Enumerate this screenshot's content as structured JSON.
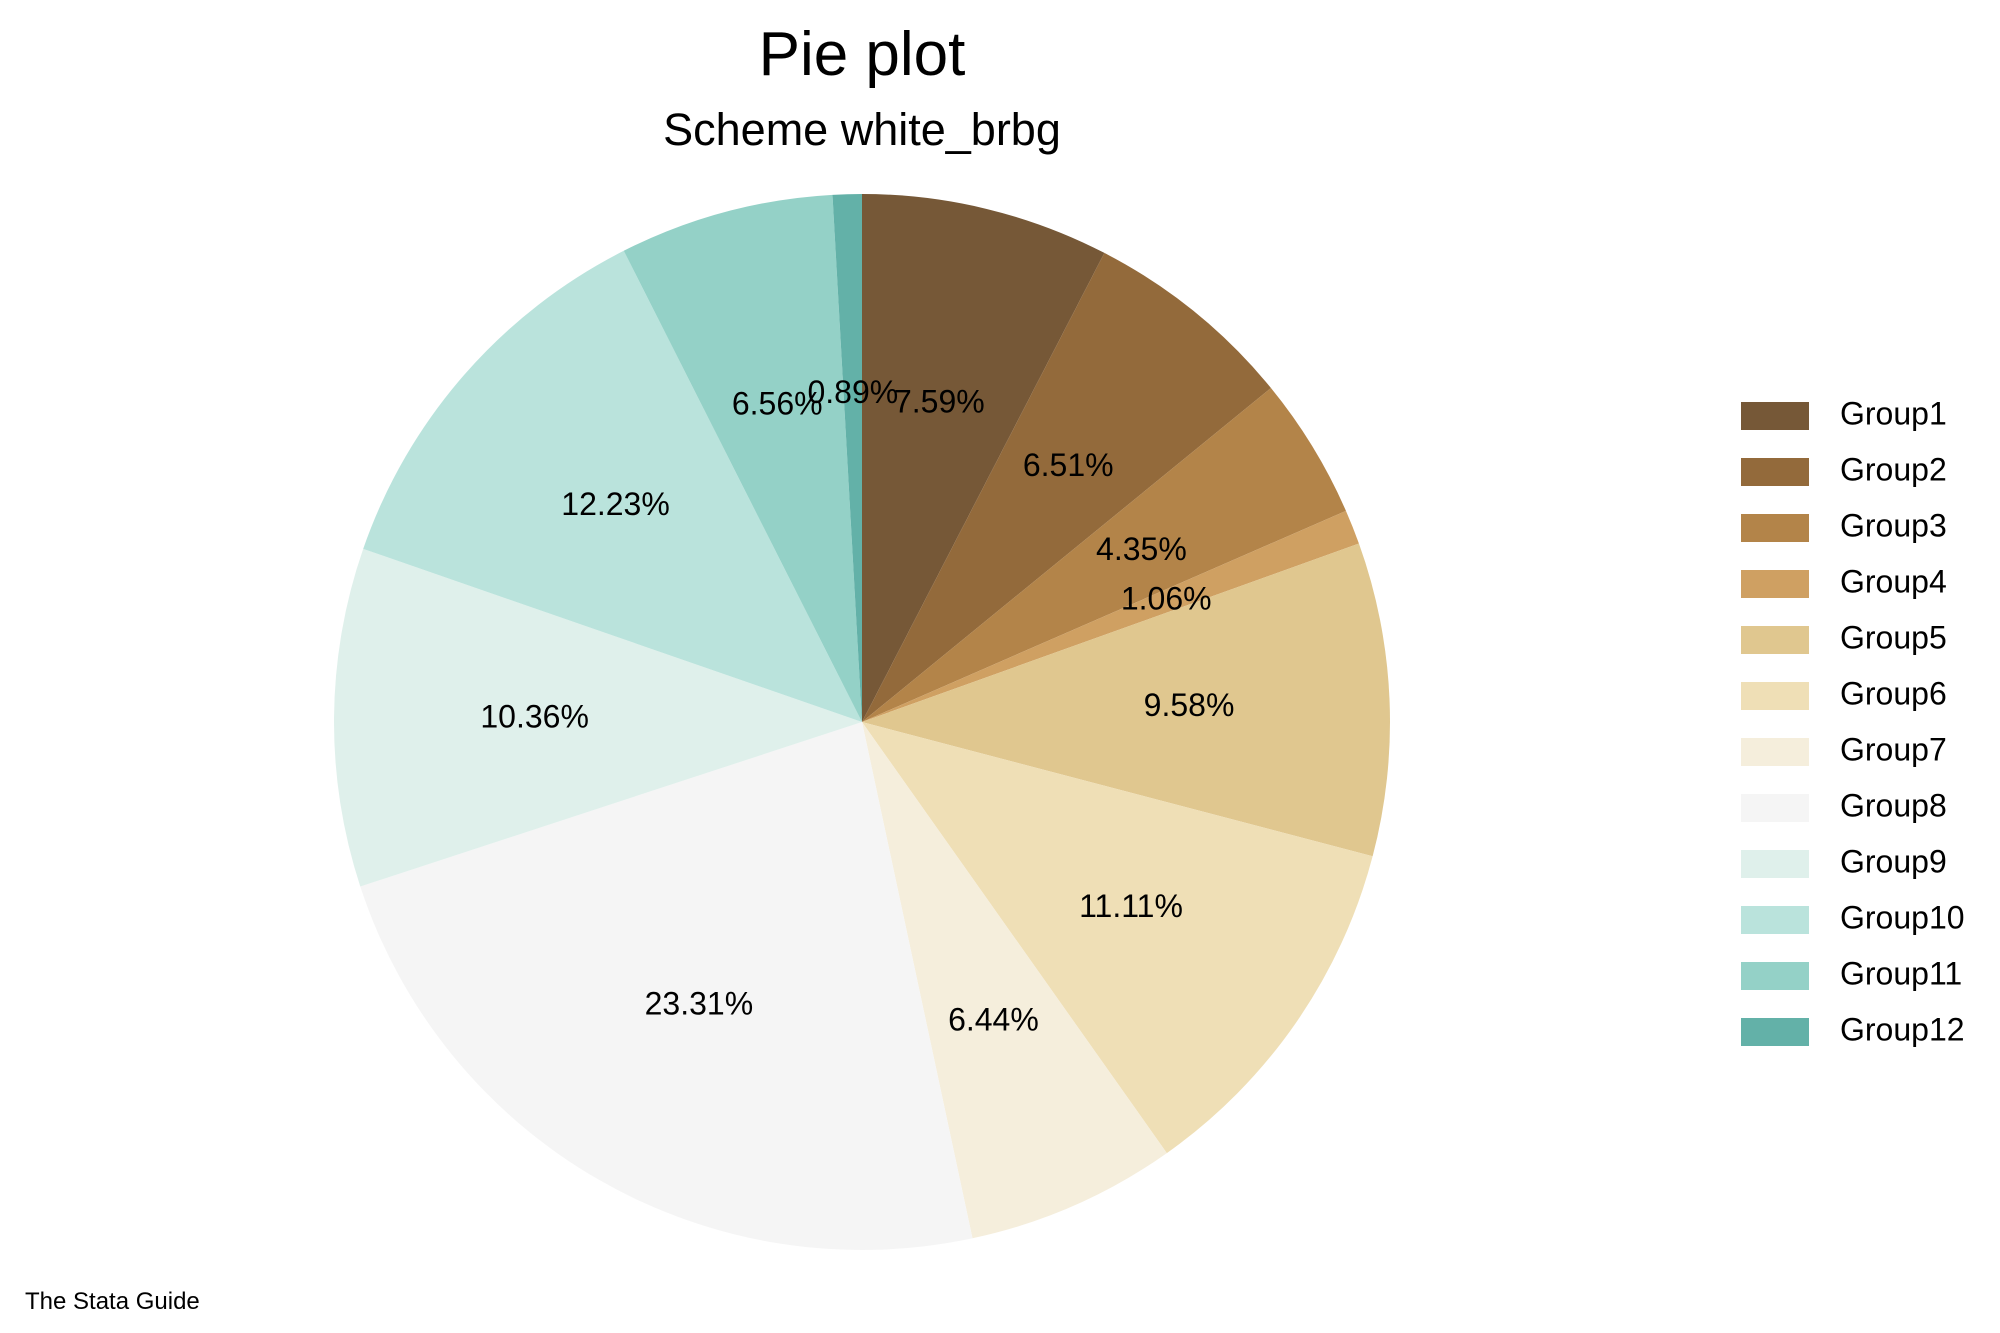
{
  "chart_data": {
    "type": "pie",
    "title": "Pie plot",
    "subtitle": "Scheme white_brbg",
    "note": "The Stata Guide",
    "legend_position": "right",
    "slices": [
      {
        "label": "Group1",
        "value": 7.59,
        "value_label": "7.59%",
        "color": "#765837"
      },
      {
        "label": "Group2",
        "value": 6.51,
        "value_label": "6.51%",
        "color": "#936a3b"
      },
      {
        "label": "Group3",
        "value": 4.35,
        "value_label": "4.35%",
        "color": "#b38449"
      },
      {
        "label": "Group4",
        "value": 1.06,
        "value_label": "1.06%",
        "color": "#cfa062"
      },
      {
        "label": "Group5",
        "value": 9.58,
        "value_label": "9.58%",
        "color": "#e0c78f"
      },
      {
        "label": "Group6",
        "value": 11.11,
        "value_label": "11.11%",
        "color": "#efdfb6"
      },
      {
        "label": "Group7",
        "value": 6.44,
        "value_label": "6.44%",
        "color": "#f5eedc"
      },
      {
        "label": "Group8",
        "value": 23.31,
        "value_label": "23.31%",
        "color": "#f5f5f5"
      },
      {
        "label": "Group9",
        "value": 10.36,
        "value_label": "10.36%",
        "color": "#dff0eb"
      },
      {
        "label": "Group10",
        "value": 12.23,
        "value_label": "12.23%",
        "color": "#bae3dc"
      },
      {
        "label": "Group11",
        "value": 6.56,
        "value_label": "6.56%",
        "color": "#94d1c7"
      },
      {
        "label": "Group12",
        "value": 0.89,
        "value_label": "0.89%",
        "color": "#63b1a8"
      }
    ]
  }
}
